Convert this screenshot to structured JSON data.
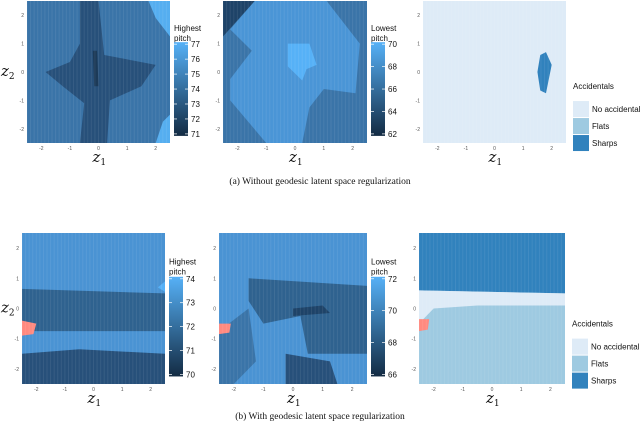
{
  "chart_data": [
    {
      "type": "heatmap",
      "panel": "a",
      "xlabel": "z1",
      "ylabel": "z2",
      "xticks": [
        "-2",
        "-1",
        "0",
        "1",
        "2"
      ],
      "yticks": [
        "2",
        "1",
        "0",
        "-1",
        "-2"
      ],
      "xlim": [
        -2.5,
        2.5
      ],
      "ylim": [
        -2.5,
        2.5
      ],
      "legend_title": [
        "Highest",
        "pitch"
      ],
      "legend_values": [
        "77",
        "76",
        "75",
        "74",
        "73",
        "72",
        "71"
      ],
      "colorscale": [
        "#132b43",
        "#56b1f7"
      ]
    },
    {
      "type": "heatmap",
      "panel": "a",
      "xlabel": "z1",
      "ylabel": "",
      "xticks": [
        "-2",
        "-1",
        "0",
        "1",
        "2"
      ],
      "yticks": [
        "2",
        "1",
        "0",
        "-1",
        "-2"
      ],
      "xlim": [
        -2.5,
        2.5
      ],
      "ylim": [
        -2.5,
        2.5
      ],
      "legend_title": [
        "Lowest",
        "pitch"
      ],
      "legend_values": [
        "70",
        "68",
        "66",
        "64",
        "62"
      ],
      "colorscale": [
        "#132b43",
        "#56b1f7"
      ]
    },
    {
      "type": "heatmap",
      "panel": "a",
      "xlabel": "z1",
      "ylabel": "",
      "xticks": [
        "-2",
        "-1",
        "0",
        "1",
        "2"
      ],
      "yticks": [
        "2",
        "1",
        "0",
        "-1",
        "-2"
      ],
      "xlim": [
        -2.5,
        2.5
      ],
      "ylim": [
        -2.5,
        2.5
      ],
      "legend_title": "Accidentals",
      "legend_entries": [
        {
          "label": "No accidental",
          "color": "#deebf7"
        },
        {
          "label": "Flats",
          "color": "#9ecae1"
        },
        {
          "label": "Sharps",
          "color": "#3182bd"
        }
      ]
    },
    {
      "type": "heatmap",
      "panel": "b",
      "xlabel": "z1",
      "ylabel": "z2",
      "xticks": [
        "-2",
        "-1",
        "0",
        "1",
        "2"
      ],
      "yticks": [
        "2",
        "1",
        "0",
        "-1",
        "-2"
      ],
      "xlim": [
        -2.5,
        2.5
      ],
      "ylim": [
        -2.5,
        2.5
      ],
      "legend_title": [
        "Highest",
        "pitch"
      ],
      "legend_values": [
        "74",
        "73",
        "72",
        "71",
        "70"
      ],
      "colorscale": [
        "#132b43",
        "#56b1f7"
      ]
    },
    {
      "type": "heatmap",
      "panel": "b",
      "xlabel": "z1",
      "ylabel": "",
      "xticks": [
        "-2",
        "-1",
        "0",
        "1",
        "2"
      ],
      "yticks": [
        "2",
        "1",
        "0",
        "-1",
        "-2"
      ],
      "xlim": [
        -2.5,
        2.5
      ],
      "ylim": [
        -2.5,
        2.5
      ],
      "legend_title": [
        "Lowest",
        "pitch"
      ],
      "legend_values": [
        "72",
        "70",
        "68",
        "66"
      ],
      "colorscale": [
        "#132b43",
        "#56b1f7"
      ]
    },
    {
      "type": "heatmap",
      "panel": "b",
      "xlabel": "z1",
      "ylabel": "",
      "xticks": [
        "-2",
        "-1",
        "0",
        "1",
        "2"
      ],
      "yticks": [
        "2",
        "1",
        "0",
        "-1",
        "-2"
      ],
      "xlim": [
        -2.5,
        2.5
      ],
      "ylim": [
        -2.5,
        2.5
      ],
      "legend_title": "Accidentals",
      "legend_entries": [
        {
          "label": "No accidental",
          "color": "#deebf7"
        },
        {
          "label": "Flats",
          "color": "#9ecae1"
        },
        {
          "label": "Sharps",
          "color": "#3182bd"
        }
      ]
    }
  ],
  "captions": {
    "a": "(a) Without geodesic latent space regularization",
    "b": "(b) With geodesic latent space regularization"
  }
}
